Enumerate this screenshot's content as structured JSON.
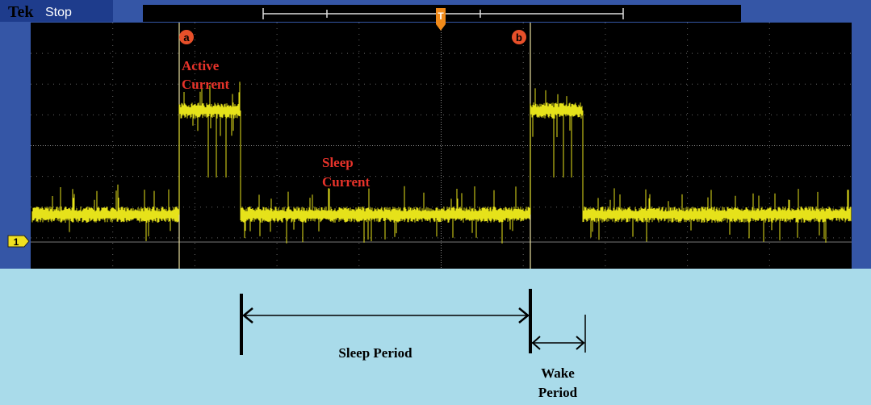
{
  "header": {
    "brand": "Tek",
    "status": "Stop",
    "trigger": "T"
  },
  "channel": "1",
  "cursors": [
    {
      "label": "a"
    },
    {
      "label": "b"
    }
  ],
  "annotations": {
    "active": [
      "Active",
      "Current"
    ],
    "sleep": [
      "Sleep",
      "Current"
    ]
  },
  "periods": {
    "sleep": "Sleep Period",
    "wake": [
      "Wake",
      "Period"
    ]
  }
}
